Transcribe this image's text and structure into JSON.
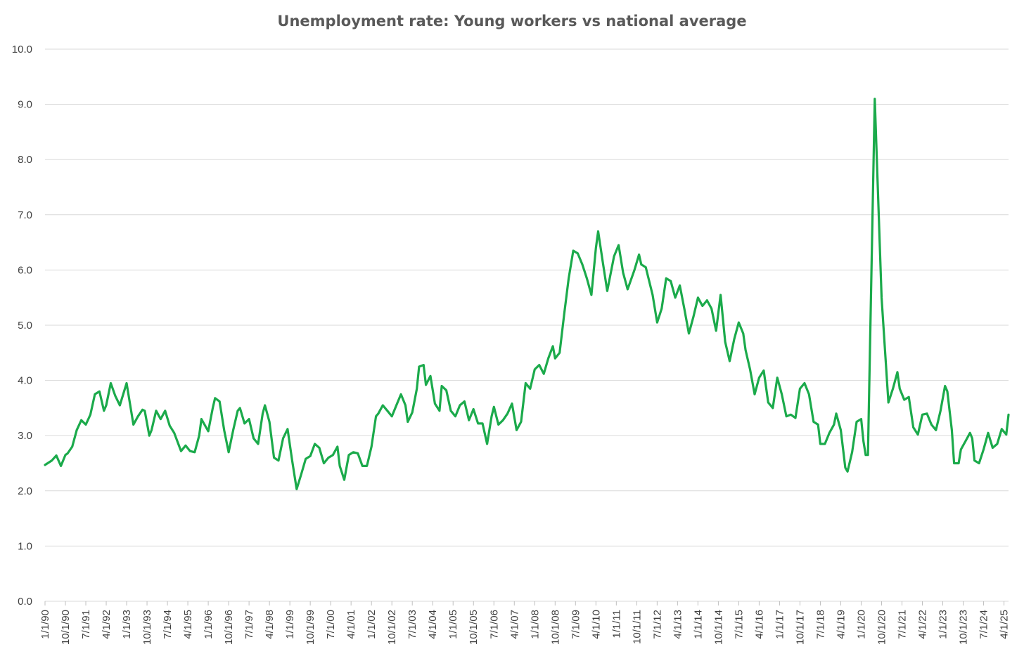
{
  "chart_data": {
    "type": "line",
    "title": "Unemployment rate: Young workers vs national average",
    "xlabel": "",
    "ylabel": "",
    "ylim": [
      0,
      10
    ],
    "grid": true,
    "line_color": "#1BAA4B",
    "grid_color": "#D9D9D9",
    "y_ticks": [
      "0.0",
      "1.0",
      "2.0",
      "3.0",
      "4.0",
      "5.0",
      "6.0",
      "7.0",
      "8.0",
      "9.0",
      "10.0"
    ],
    "x_ticks": [
      "1/1/90",
      "10/1/90",
      "7/1/91",
      "4/1/92",
      "1/1/93",
      "10/1/93",
      "7/1/94",
      "4/1/95",
      "1/1/96",
      "10/1/96",
      "7/1/97",
      "4/1/98",
      "1/1/99",
      "10/1/99",
      "7/1/00",
      "4/1/01",
      "1/1/02",
      "10/1/02",
      "7/1/03",
      "4/1/04",
      "1/1/05",
      "10/1/05",
      "7/1/06",
      "4/1/07",
      "1/1/08",
      "10/1/08",
      "7/1/09",
      "4/1/10",
      "1/1/11",
      "10/1/11",
      "7/1/12",
      "4/1/13",
      "1/1/14",
      "10/1/14",
      "7/1/15",
      "4/1/16",
      "1/1/17",
      "10/1/17",
      "7/1/18",
      "4/1/19",
      "1/1/20",
      "10/1/20",
      "7/1/21",
      "4/1/22",
      "1/1/23",
      "10/1/23",
      "7/1/24",
      "4/1/25"
    ],
    "series": [
      {
        "name": "",
        "points": [
          [
            "1990-01",
            2.47
          ],
          [
            "1990-04",
            2.55
          ],
          [
            "1990-06",
            2.64
          ],
          [
            "1990-08",
            2.45
          ],
          [
            "1990-10",
            2.65
          ],
          [
            "1990-11",
            2.68
          ],
          [
            "1991-01",
            2.8
          ],
          [
            "1991-03",
            3.1
          ],
          [
            "1991-05",
            3.28
          ],
          [
            "1991-07",
            3.2
          ],
          [
            "1991-09",
            3.38
          ],
          [
            "1991-11",
            3.75
          ],
          [
            "1992-01",
            3.8
          ],
          [
            "1992-03",
            3.45
          ],
          [
            "1992-04",
            3.55
          ],
          [
            "1992-06",
            3.95
          ],
          [
            "1992-08",
            3.72
          ],
          [
            "1992-10",
            3.55
          ],
          [
            "1993-01",
            3.95
          ],
          [
            "1993-04",
            3.2
          ],
          [
            "1993-06",
            3.35
          ],
          [
            "1993-08",
            3.47
          ],
          [
            "1993-09",
            3.45
          ],
          [
            "1993-11",
            3.0
          ],
          [
            "1993-12",
            3.1
          ],
          [
            "1994-02",
            3.45
          ],
          [
            "1994-04",
            3.3
          ],
          [
            "1994-06",
            3.45
          ],
          [
            "1994-08",
            3.18
          ],
          [
            "1994-10",
            3.05
          ],
          [
            "1995-01",
            2.72
          ],
          [
            "1995-03",
            2.82
          ],
          [
            "1995-05",
            2.72
          ],
          [
            "1995-07",
            2.7
          ],
          [
            "1995-09",
            3.0
          ],
          [
            "1995-10",
            3.3
          ],
          [
            "1996-01",
            3.08
          ],
          [
            "1996-03",
            3.5
          ],
          [
            "1996-04",
            3.68
          ],
          [
            "1996-06",
            3.62
          ],
          [
            "1996-08",
            3.1
          ],
          [
            "1996-10",
            2.7
          ],
          [
            "1996-12",
            3.1
          ],
          [
            "1997-02",
            3.45
          ],
          [
            "1997-03",
            3.5
          ],
          [
            "1997-05",
            3.22
          ],
          [
            "1997-07",
            3.3
          ],
          [
            "1997-09",
            2.95
          ],
          [
            "1997-11",
            2.85
          ],
          [
            "1998-01",
            3.4
          ],
          [
            "1998-02",
            3.55
          ],
          [
            "1998-04",
            3.25
          ],
          [
            "1998-06",
            2.6
          ],
          [
            "1998-08",
            2.55
          ],
          [
            "1998-10",
            2.95
          ],
          [
            "1998-12",
            3.12
          ],
          [
            "1999-02",
            2.55
          ],
          [
            "1999-04",
            2.03
          ],
          [
            "1999-06",
            2.3
          ],
          [
            "1999-08",
            2.58
          ],
          [
            "1999-10",
            2.63
          ],
          [
            "1999-12",
            2.85
          ],
          [
            "2000-02",
            2.78
          ],
          [
            "2000-04",
            2.5
          ],
          [
            "2000-06",
            2.6
          ],
          [
            "2000-08",
            2.65
          ],
          [
            "2000-10",
            2.8
          ],
          [
            "2000-11",
            2.45
          ],
          [
            "2001-01",
            2.2
          ],
          [
            "2001-03",
            2.65
          ],
          [
            "2001-05",
            2.7
          ],
          [
            "2001-07",
            2.68
          ],
          [
            "2001-09",
            2.45
          ],
          [
            "2001-11",
            2.45
          ],
          [
            "2002-01",
            2.8
          ],
          [
            "2002-03",
            3.35
          ],
          [
            "2002-04",
            3.4
          ],
          [
            "2002-06",
            3.55
          ],
          [
            "2002-08",
            3.45
          ],
          [
            "2002-10",
            3.35
          ],
          [
            "2002-12",
            3.55
          ],
          [
            "2003-02",
            3.75
          ],
          [
            "2003-04",
            3.55
          ],
          [
            "2003-05",
            3.25
          ],
          [
            "2003-07",
            3.42
          ],
          [
            "2003-09",
            3.85
          ],
          [
            "2003-10",
            4.25
          ],
          [
            "2003-12",
            4.28
          ],
          [
            "2004-01",
            3.92
          ],
          [
            "2004-03",
            4.08
          ],
          [
            "2004-05",
            3.58
          ],
          [
            "2004-07",
            3.45
          ],
          [
            "2004-08",
            3.9
          ],
          [
            "2004-10",
            3.82
          ],
          [
            "2004-12",
            3.45
          ],
          [
            "2005-02",
            3.35
          ],
          [
            "2005-04",
            3.55
          ],
          [
            "2005-06",
            3.62
          ],
          [
            "2005-08",
            3.28
          ],
          [
            "2005-10",
            3.48
          ],
          [
            "2005-12",
            3.22
          ],
          [
            "2006-02",
            3.22
          ],
          [
            "2006-04",
            2.85
          ],
          [
            "2006-06",
            3.35
          ],
          [
            "2006-07",
            3.52
          ],
          [
            "2006-09",
            3.2
          ],
          [
            "2006-11",
            3.28
          ],
          [
            "2007-01",
            3.4
          ],
          [
            "2007-03",
            3.58
          ],
          [
            "2007-05",
            3.1
          ],
          [
            "2007-07",
            3.25
          ],
          [
            "2007-09",
            3.95
          ],
          [
            "2007-11",
            3.85
          ],
          [
            "2008-01",
            4.2
          ],
          [
            "2008-03",
            4.28
          ],
          [
            "2008-05",
            4.12
          ],
          [
            "2008-07",
            4.4
          ],
          [
            "2008-09",
            4.62
          ],
          [
            "2008-10",
            4.4
          ],
          [
            "2008-12",
            4.5
          ],
          [
            "2009-02",
            5.2
          ],
          [
            "2009-04",
            5.85
          ],
          [
            "2009-06",
            6.35
          ],
          [
            "2009-08",
            6.3
          ],
          [
            "2009-10",
            6.1
          ],
          [
            "2009-12",
            5.85
          ],
          [
            "2010-02",
            5.55
          ],
          [
            "2010-04",
            6.4
          ],
          [
            "2010-05",
            6.7
          ],
          [
            "2010-07",
            6.15
          ],
          [
            "2010-09",
            5.62
          ],
          [
            "2010-12",
            6.25
          ],
          [
            "2011-02",
            6.45
          ],
          [
            "2011-04",
            5.95
          ],
          [
            "2011-06",
            5.65
          ],
          [
            "2011-09",
            6.0
          ],
          [
            "2011-11",
            6.28
          ],
          [
            "2011-12",
            6.1
          ],
          [
            "2012-02",
            6.05
          ],
          [
            "2012-05",
            5.55
          ],
          [
            "2012-07",
            5.05
          ],
          [
            "2012-09",
            5.3
          ],
          [
            "2012-11",
            5.85
          ],
          [
            "2013-01",
            5.8
          ],
          [
            "2013-03",
            5.5
          ],
          [
            "2013-05",
            5.72
          ],
          [
            "2013-07",
            5.3
          ],
          [
            "2013-09",
            4.85
          ],
          [
            "2013-11",
            5.15
          ],
          [
            "2014-01",
            5.5
          ],
          [
            "2014-03",
            5.35
          ],
          [
            "2014-05",
            5.45
          ],
          [
            "2014-07",
            5.3
          ],
          [
            "2014-09",
            4.9
          ],
          [
            "2014-11",
            5.55
          ],
          [
            "2015-01",
            4.7
          ],
          [
            "2015-03",
            4.35
          ],
          [
            "2015-05",
            4.75
          ],
          [
            "2015-07",
            5.05
          ],
          [
            "2015-09",
            4.85
          ],
          [
            "2015-10",
            4.55
          ],
          [
            "2015-12",
            4.2
          ],
          [
            "2016-02",
            3.75
          ],
          [
            "2016-04",
            4.05
          ],
          [
            "2016-06",
            4.18
          ],
          [
            "2016-08",
            3.6
          ],
          [
            "2016-10",
            3.5
          ],
          [
            "2016-12",
            4.05
          ],
          [
            "2017-02",
            3.75
          ],
          [
            "2017-04",
            3.35
          ],
          [
            "2017-06",
            3.38
          ],
          [
            "2017-08",
            3.32
          ],
          [
            "2017-10",
            3.85
          ],
          [
            "2017-12",
            3.95
          ],
          [
            "2018-02",
            3.75
          ],
          [
            "2018-04",
            3.25
          ],
          [
            "2018-06",
            3.2
          ],
          [
            "2018-07",
            2.85
          ],
          [
            "2018-09",
            2.85
          ],
          [
            "2018-11",
            3.05
          ],
          [
            "2019-01",
            3.2
          ],
          [
            "2019-02",
            3.4
          ],
          [
            "2019-04",
            3.1
          ],
          [
            "2019-06",
            2.42
          ],
          [
            "2019-07",
            2.35
          ],
          [
            "2019-09",
            2.7
          ],
          [
            "2019-11",
            3.25
          ],
          [
            "2020-01",
            3.3
          ],
          [
            "2020-02",
            2.9
          ],
          [
            "2020-03",
            2.65
          ],
          [
            "2020-04",
            2.65
          ],
          [
            "2020-07",
            9.1
          ],
          [
            "2020-10",
            5.5
          ],
          [
            "2021-01",
            3.6
          ],
          [
            "2021-03",
            3.85
          ],
          [
            "2021-05",
            4.15
          ],
          [
            "2021-06",
            3.85
          ],
          [
            "2021-08",
            3.65
          ],
          [
            "2021-10",
            3.7
          ],
          [
            "2021-12",
            3.15
          ],
          [
            "2022-02",
            3.02
          ],
          [
            "2022-04",
            3.38
          ],
          [
            "2022-06",
            3.4
          ],
          [
            "2022-08",
            3.2
          ],
          [
            "2022-10",
            3.1
          ],
          [
            "2022-12",
            3.45
          ],
          [
            "2023-02",
            3.9
          ],
          [
            "2023-03",
            3.8
          ],
          [
            "2023-05",
            3.1
          ],
          [
            "2023-06",
            2.5
          ],
          [
            "2023-08",
            2.5
          ],
          [
            "2023-09",
            2.75
          ],
          [
            "2023-11",
            2.9
          ],
          [
            "2024-01",
            3.05
          ],
          [
            "2024-02",
            2.95
          ],
          [
            "2024-03",
            2.55
          ],
          [
            "2024-05",
            2.5
          ],
          [
            "2024-07",
            2.75
          ],
          [
            "2024-09",
            3.05
          ],
          [
            "2024-11",
            2.78
          ],
          [
            "2025-01",
            2.85
          ],
          [
            "2025-03",
            3.12
          ],
          [
            "2025-05",
            3.02
          ],
          [
            "2025-06",
            3.38
          ]
        ]
      }
    ]
  }
}
